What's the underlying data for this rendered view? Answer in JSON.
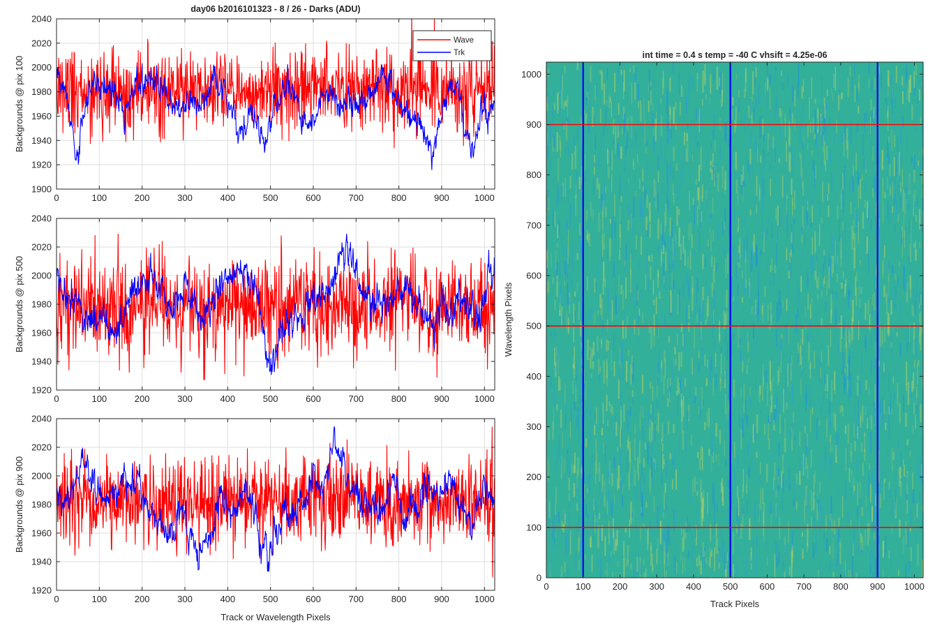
{
  "colors": {
    "wave": "#ff0000",
    "trk": "#0000ff",
    "axis": "#262626",
    "grid": "#dedede",
    "heat_base": "#33b09a",
    "heat_cool": "#1e90dd",
    "heat_warm": "#b8d266"
  },
  "chart_data": [
    {
      "type": "line",
      "title": "day06 b2016101323 - 8 / 26 - Darks (ADU)",
      "xlabel": "",
      "ylabel": "Backgrounds @ pix 100",
      "xlim": [
        0,
        1024
      ],
      "ylim": [
        1900,
        2040
      ],
      "xticks": [
        "0",
        "100",
        "200",
        "300",
        "400",
        "500",
        "600",
        "700",
        "800",
        "900",
        "1000"
      ],
      "yticks": [
        "1900",
        "1920",
        "1940",
        "1960",
        "1980",
        "2000",
        "2020",
        "2040"
      ],
      "grid": true,
      "legend": "top-right",
      "series": [
        {
          "name": "Wave",
          "color": "#ff0000",
          "mean": 1982,
          "noise": 17,
          "anchors": [
            [
              0,
              1982
            ],
            [
              1024,
              1982
            ]
          ]
        },
        {
          "name": "Trk",
          "color": "#0000ff",
          "mean": 1978,
          "noise": 5,
          "anchors": [
            [
              0,
              1990
            ],
            [
              20,
              1985
            ],
            [
              35,
              1945
            ],
            [
              50,
              1925
            ],
            [
              60,
              1955
            ],
            [
              80,
              1985
            ],
            [
              100,
              1990
            ],
            [
              140,
              1975
            ],
            [
              160,
              1958
            ],
            [
              190,
              1985
            ],
            [
              230,
              1990
            ],
            [
              260,
              1978
            ],
            [
              290,
              1960
            ],
            [
              310,
              1975
            ],
            [
              340,
              1972
            ],
            [
              370,
              1990
            ],
            [
              390,
              1980
            ],
            [
              410,
              1965
            ],
            [
              430,
              1942
            ],
            [
              450,
              1968
            ],
            [
              470,
              1955
            ],
            [
              490,
              1940
            ],
            [
              510,
              1968
            ],
            [
              540,
              1985
            ],
            [
              560,
              1975
            ],
            [
              580,
              1948
            ],
            [
              600,
              1955
            ],
            [
              620,
              1978
            ],
            [
              640,
              1975
            ],
            [
              680,
              1970
            ],
            [
              720,
              1975
            ],
            [
              740,
              1980
            ],
            [
              760,
              2000
            ],
            [
              780,
              1985
            ],
            [
              800,
              1970
            ],
            [
              820,
              1962
            ],
            [
              840,
              1950
            ],
            [
              860,
              1945
            ],
            [
              880,
              1930
            ],
            [
              900,
              1970
            ],
            [
              920,
              1985
            ],
            [
              940,
              1980
            ],
            [
              955,
              1950
            ],
            [
              970,
              1935
            ],
            [
              990,
              1960
            ],
            [
              1024,
              1968
            ]
          ]
        }
      ]
    },
    {
      "type": "line",
      "title": "",
      "xlabel": "",
      "ylabel": "Backgrounds @ pix 500",
      "xlim": [
        0,
        1024
      ],
      "ylim": [
        1920,
        2040
      ],
      "xticks": [
        "0",
        "100",
        "200",
        "300",
        "400",
        "500",
        "600",
        "700",
        "800",
        "900",
        "1000"
      ],
      "yticks": [
        "1920",
        "1940",
        "1960",
        "1980",
        "2000",
        "2020",
        "2040"
      ],
      "grid": true,
      "legend": "none",
      "series": [
        {
          "name": "Wave",
          "color": "#ff0000",
          "mean": 1978,
          "noise": 17,
          "anchors": [
            [
              0,
              1978
            ],
            [
              1024,
              1978
            ]
          ]
        },
        {
          "name": "Trk",
          "color": "#0000ff",
          "mean": 1980,
          "noise": 5,
          "anchors": [
            [
              0,
              2005
            ],
            [
              20,
              1985
            ],
            [
              50,
              1975
            ],
            [
              80,
              1968
            ],
            [
              110,
              1975
            ],
            [
              130,
              1955
            ],
            [
              150,
              1965
            ],
            [
              180,
              1990
            ],
            [
              200,
              1995
            ],
            [
              230,
              2000
            ],
            [
              250,
              1985
            ],
            [
              270,
              1975
            ],
            [
              300,
              1995
            ],
            [
              320,
              1985
            ],
            [
              340,
              1965
            ],
            [
              360,
              1978
            ],
            [
              380,
              1995
            ],
            [
              410,
              2000
            ],
            [
              440,
              2003
            ],
            [
              460,
              2000
            ],
            [
              480,
              1975
            ],
            [
              490,
              1948
            ],
            [
              500,
              1940
            ],
            [
              520,
              1955
            ],
            [
              540,
              1965
            ],
            [
              560,
              1975
            ],
            [
              580,
              1970
            ],
            [
              600,
              1985
            ],
            [
              620,
              1985
            ],
            [
              640,
              1995
            ],
            [
              660,
              2015
            ],
            [
              680,
              2020
            ],
            [
              700,
              2000
            ],
            [
              720,
              1985
            ],
            [
              740,
              1975
            ],
            [
              760,
              1985
            ],
            [
              780,
              1980
            ],
            [
              800,
              1990
            ],
            [
              820,
              1995
            ],
            [
              840,
              1980
            ],
            [
              860,
              1975
            ],
            [
              880,
              1965
            ],
            [
              900,
              1985
            ],
            [
              930,
              1975
            ],
            [
              960,
              1985
            ],
            [
              990,
              1970
            ],
            [
              1010,
              2000
            ],
            [
              1024,
              2005
            ]
          ]
        }
      ]
    },
    {
      "type": "line",
      "title": "",
      "xlabel": "Track or Wavelength Pixels",
      "ylabel": "Backgrounds @ pix 900",
      "xlim": [
        0,
        1024
      ],
      "ylim": [
        1920,
        2040
      ],
      "xticks": [
        "0",
        "100",
        "200",
        "300",
        "400",
        "500",
        "600",
        "700",
        "800",
        "900",
        "1000"
      ],
      "yticks": [
        "1920",
        "1940",
        "1960",
        "1980",
        "2000",
        "2020",
        "2040"
      ],
      "grid": true,
      "legend": "none",
      "series": [
        {
          "name": "Wave",
          "color": "#ff0000",
          "mean": 1983,
          "noise": 16,
          "anchors": [
            [
              0,
              1983
            ],
            [
              1024,
              1983
            ]
          ]
        },
        {
          "name": "Trk",
          "color": "#0000ff",
          "mean": 1985,
          "noise": 5,
          "anchors": [
            [
              0,
              1990
            ],
            [
              30,
              1985
            ],
            [
              60,
              2010
            ],
            [
              80,
              2000
            ],
            [
              100,
              1985
            ],
            [
              130,
              1980
            ],
            [
              160,
              2000
            ],
            [
              190,
              1990
            ],
            [
              220,
              1975
            ],
            [
              250,
              1965
            ],
            [
              270,
              1960
            ],
            [
              290,
              1975
            ],
            [
              320,
              1955
            ],
            [
              340,
              1945
            ],
            [
              360,
              1960
            ],
            [
              380,
              1985
            ],
            [
              400,
              1975
            ],
            [
              420,
              1980
            ],
            [
              440,
              1990
            ],
            [
              460,
              1975
            ],
            [
              480,
              1955
            ],
            [
              495,
              1945
            ],
            [
              510,
              1960
            ],
            [
              540,
              1975
            ],
            [
              570,
              1980
            ],
            [
              600,
              2000
            ],
            [
              620,
              1995
            ],
            [
              640,
              2015
            ],
            [
              650,
              2028
            ],
            [
              660,
              2015
            ],
            [
              680,
              2000
            ],
            [
              700,
              1985
            ],
            [
              730,
              1975
            ],
            [
              760,
              1980
            ],
            [
              790,
              1995
            ],
            [
              810,
              1975
            ],
            [
              840,
              1980
            ],
            [
              870,
              1990
            ],
            [
              900,
              1990
            ],
            [
              920,
              1995
            ],
            [
              950,
              1975
            ],
            [
              970,
              1965
            ],
            [
              990,
              1985
            ],
            [
              1010,
              1995
            ],
            [
              1024,
              1980
            ]
          ]
        }
      ]
    },
    {
      "type": "heatmap",
      "title": "int time = 0.4 s   temp = -40 C   vhsift = 4.25e-06",
      "xlabel": "Track Pixels",
      "ylabel": "Wavelength Pixels",
      "xlim": [
        0,
        1024
      ],
      "ylim": [
        0,
        1024
      ],
      "xticks": [
        "0",
        "100",
        "200",
        "300",
        "400",
        "500",
        "600",
        "700",
        "800",
        "900",
        "1000"
      ],
      "yticks": [
        "0",
        "100",
        "200",
        "300",
        "400",
        "500",
        "600",
        "700",
        "800",
        "900",
        "1000"
      ],
      "grid": false,
      "legend": "none",
      "colormap": "parula",
      "vertical_lines": {
        "color": "#0000ff",
        "x": [
          100,
          500,
          900
        ]
      },
      "horizontal_lines": {
        "color": "#ff0000",
        "y": [
          100,
          500,
          900
        ]
      }
    }
  ]
}
